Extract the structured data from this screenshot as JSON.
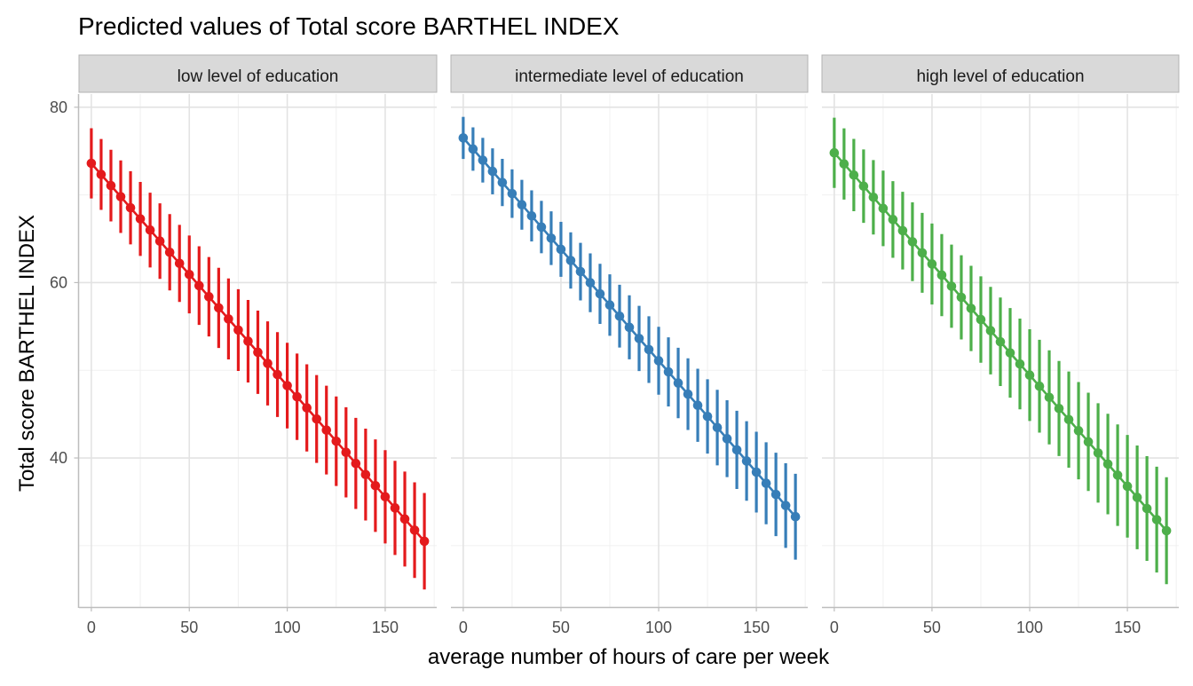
{
  "chart_data": {
    "type": "line",
    "title": "Predicted values of Total score BARTHEL INDEX",
    "xlabel": "average number of hours of care per week",
    "ylabel": "Total score BARTHEL INDEX",
    "x_ticks": [
      0,
      50,
      100,
      150
    ],
    "y_ticks": [
      40,
      60,
      80
    ],
    "xlim": [
      -6.3,
      176.3
    ],
    "ylim": [
      23,
      81.5
    ],
    "grid": true,
    "legend": "none",
    "x": [
      0,
      5,
      10,
      15,
      20,
      25,
      30,
      35,
      40,
      45,
      50,
      55,
      60,
      65,
      70,
      75,
      80,
      85,
      90,
      95,
      100,
      105,
      110,
      115,
      120,
      125,
      130,
      135,
      140,
      145,
      150,
      155,
      160,
      165,
      170
    ],
    "panels": [
      {
        "label": "low level of education",
        "color": "#e41a1c",
        "y_start": 73.6,
        "y_end": 30.5,
        "ci_halfwidth_start": 4.0,
        "ci_halfwidth_end": 5.5
      },
      {
        "label": "intermediate level of education",
        "color": "#377eb8",
        "y_start": 76.5,
        "y_end": 33.3,
        "ci_halfwidth_start": 2.4,
        "ci_halfwidth_end": 4.9
      },
      {
        "label": "high level of education",
        "color": "#4daf4a",
        "y_start": 74.8,
        "y_end": 31.7,
        "ci_halfwidth_start": 4.0,
        "ci_halfwidth_end": 6.1
      }
    ]
  }
}
